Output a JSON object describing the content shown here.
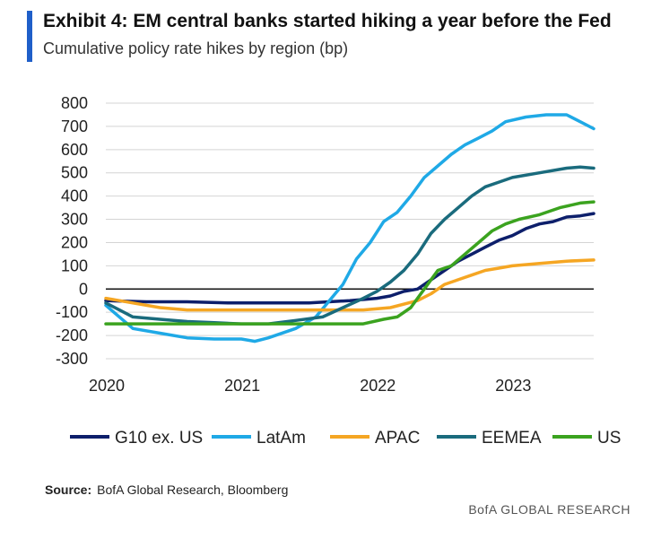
{
  "header": {
    "title": "Exhibit 4: EM central banks started hiking a year before the Fed",
    "subtitle": "Cumulative policy rate hikes by region (bp)"
  },
  "footer": {
    "source_label": "Source:",
    "source_text": "BofA Global Research, Bloomberg",
    "brand": "BofA GLOBAL RESEARCH"
  },
  "colors": {
    "accent": "#1f5fc9",
    "g10": "#0d1f6b",
    "latam": "#1fa9e6",
    "apac": "#f5a623",
    "eemea": "#1a6b7d",
    "us": "#3ba31f"
  },
  "chart_data": {
    "type": "line",
    "title": "Exhibit 4: EM central banks started hiking a year before the Fed",
    "subtitle": "Cumulative policy rate hikes by region (bp)",
    "xlabel": "",
    "ylabel": "",
    "xlim": [
      2020.0,
      2023.6
    ],
    "ylim": [
      -300,
      800
    ],
    "yticks": [
      800,
      700,
      600,
      500,
      400,
      300,
      200,
      100,
      0,
      -100,
      -200,
      -300
    ],
    "xticks": [
      2020,
      2021,
      2022,
      2023
    ],
    "grid": true,
    "legend": "bottom",
    "series": [
      {
        "name": "G10 ex. US",
        "color": "#0d1f6b",
        "x": [
          2020.0,
          2020.3,
          2020.6,
          2020.9,
          2021.2,
          2021.5,
          2021.8,
          2022.0,
          2022.1,
          2022.2,
          2022.3,
          2022.4,
          2022.5,
          2022.6,
          2022.7,
          2022.8,
          2022.9,
          2023.0,
          2023.1,
          2023.2,
          2023.3,
          2023.4,
          2023.5,
          2023.6
        ],
        "y": [
          -50,
          -55,
          -55,
          -60,
          -60,
          -60,
          -50,
          -40,
          -30,
          -10,
          0,
          40,
          80,
          120,
          150,
          180,
          210,
          230,
          260,
          280,
          290,
          310,
          315,
          325
        ]
      },
      {
        "name": "LatAm",
        "color": "#1fa9e6",
        "x": [
          2020.0,
          2020.1,
          2020.2,
          2020.4,
          2020.6,
          2020.8,
          2021.0,
          2021.1,
          2021.2,
          2021.4,
          2021.55,
          2021.65,
          2021.75,
          2021.85,
          2021.95,
          2022.05,
          2022.15,
          2022.25,
          2022.35,
          2022.45,
          2022.55,
          2022.65,
          2022.75,
          2022.85,
          2022.95,
          2023.1,
          2023.25,
          2023.4,
          2023.5,
          2023.6
        ],
        "y": [
          -70,
          -120,
          -170,
          -190,
          -210,
          -215,
          -215,
          -225,
          -210,
          -170,
          -120,
          -50,
          20,
          130,
          200,
          290,
          330,
          400,
          480,
          530,
          580,
          620,
          650,
          680,
          720,
          740,
          750,
          750,
          720,
          690
        ]
      },
      {
        "name": "APAC",
        "color": "#f5a623",
        "x": [
          2020.0,
          2020.2,
          2020.4,
          2020.6,
          2020.8,
          2021.0,
          2021.3,
          2021.6,
          2021.9,
          2022.1,
          2022.3,
          2022.4,
          2022.5,
          2022.6,
          2022.7,
          2022.8,
          2022.9,
          2023.0,
          2023.2,
          2023.4,
          2023.6
        ],
        "y": [
          -40,
          -60,
          -80,
          -90,
          -90,
          -90,
          -90,
          -90,
          -90,
          -80,
          -50,
          -20,
          20,
          40,
          60,
          80,
          90,
          100,
          110,
          120,
          125
        ]
      },
      {
        "name": "EEMEA",
        "color": "#1a6b7d",
        "x": [
          2020.0,
          2020.1,
          2020.2,
          2020.4,
          2020.6,
          2020.8,
          2021.0,
          2021.2,
          2021.4,
          2021.6,
          2021.75,
          2021.9,
          2022.0,
          2022.1,
          2022.2,
          2022.3,
          2022.4,
          2022.5,
          2022.6,
          2022.7,
          2022.8,
          2022.9,
          2023.0,
          2023.2,
          2023.4,
          2023.5,
          2023.6
        ],
        "y": [
          -60,
          -90,
          -120,
          -130,
          -140,
          -145,
          -150,
          -150,
          -135,
          -120,
          -80,
          -40,
          -10,
          30,
          80,
          150,
          240,
          300,
          350,
          400,
          440,
          460,
          480,
          500,
          520,
          525,
          520
        ]
      },
      {
        "name": "US",
        "color": "#3ba31f",
        "x": [
          2020.0,
          2020.2,
          2020.4,
          2020.6,
          2020.8,
          2021.0,
          2021.3,
          2021.6,
          2021.9,
          2022.05,
          2022.15,
          2022.25,
          2022.35,
          2022.45,
          2022.55,
          2022.65,
          2022.75,
          2022.85,
          2022.95,
          2023.05,
          2023.2,
          2023.35,
          2023.5,
          2023.6
        ],
        "y": [
          -150,
          -150,
          -150,
          -150,
          -150,
          -150,
          -150,
          -150,
          -150,
          -130,
          -120,
          -80,
          0,
          80,
          100,
          150,
          200,
          250,
          280,
          300,
          320,
          350,
          370,
          375
        ]
      }
    ]
  }
}
